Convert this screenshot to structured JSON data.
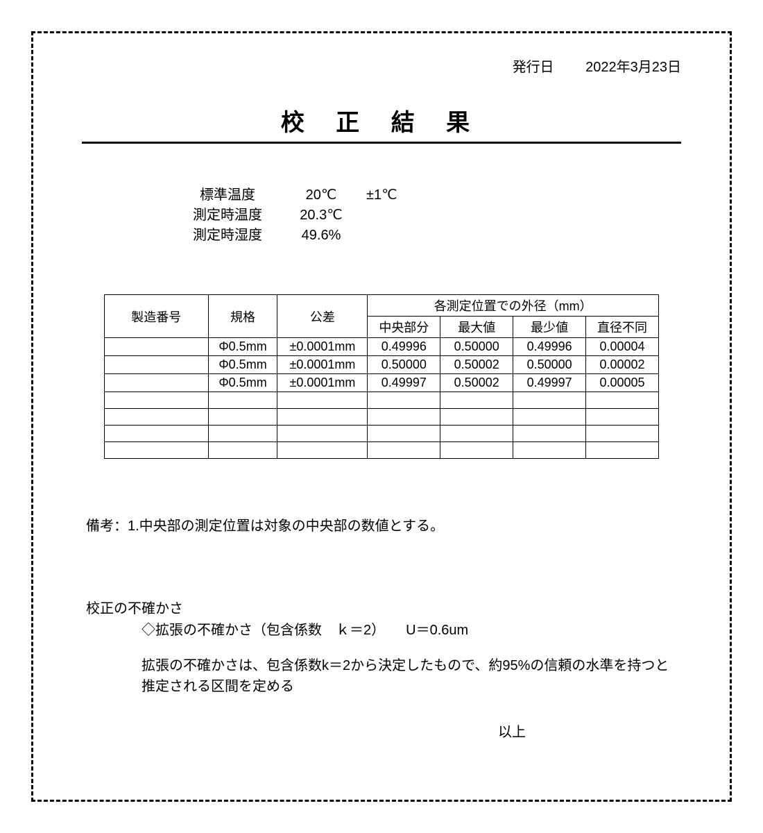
{
  "issue": {
    "label": "発行日",
    "date": "2022年3月23日"
  },
  "title": "校 正 結 果",
  "conditions": {
    "std_temp_label": "標準温度",
    "std_temp": "20℃",
    "std_temp_tol": "±1℃",
    "meas_temp_label": "測定時温度",
    "meas_temp": "20.3℃",
    "meas_hum_label": "測定時湿度",
    "meas_hum": "49.6%"
  },
  "table": {
    "head_serial": "製造番号",
    "head_spec": "規格",
    "head_tol": "公差",
    "head_group": "各測定位置での外径（mm）",
    "sub_center": "中央部分",
    "sub_max": "最大値",
    "sub_min": "最少値",
    "sub_diff": "直径不同",
    "rows": [
      {
        "serial": "",
        "spec": "Φ0.5mm",
        "tol": "±0.0001mm",
        "c": "0.49996",
        "max": "0.50000",
        "min": "0.49996",
        "d": "0.00004"
      },
      {
        "serial": "",
        "spec": "Φ0.5mm",
        "tol": "±0.0001mm",
        "c": "0.50000",
        "max": "0.50002",
        "min": "0.50000",
        "d": "0.00002"
      },
      {
        "serial": "",
        "spec": "Φ0.5mm",
        "tol": "±0.0001mm",
        "c": "0.49997",
        "max": "0.50002",
        "min": "0.49997",
        "d": "0.00005"
      },
      {
        "serial": "",
        "spec": "",
        "tol": "",
        "c": "",
        "max": "",
        "min": "",
        "d": ""
      },
      {
        "serial": "",
        "spec": "",
        "tol": "",
        "c": "",
        "max": "",
        "min": "",
        "d": ""
      },
      {
        "serial": "",
        "spec": "",
        "tol": "",
        "c": "",
        "max": "",
        "min": "",
        "d": ""
      },
      {
        "serial": "",
        "spec": "",
        "tol": "",
        "c": "",
        "max": "",
        "min": "",
        "d": ""
      }
    ]
  },
  "note": "備考：1.中央部の測定位置は対象の中央部の数値とする。",
  "uncertainty": {
    "title": "校正の不確かさ",
    "line1": "◇拡張の不確かさ（包含係数　ｋ＝2）　　U＝0.6um",
    "desc": "拡張の不確かさは、包含係数k＝2から決定したもので、約95%の信頼の水準を持つと推定される区間を定める"
  },
  "closing": "以上"
}
